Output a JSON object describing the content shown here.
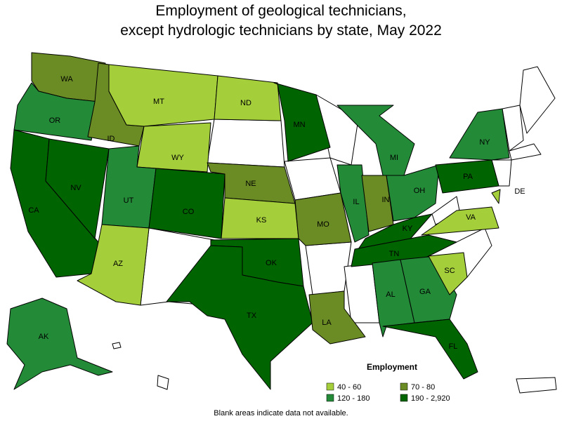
{
  "title": [
    "Employment of geological technicians,",
    "except hydrologic technicians by state, May 2022"
  ],
  "legend": {
    "title": "Employment",
    "classes": [
      {
        "label": "40 - 60",
        "color": "#a4cf3a"
      },
      {
        "label": "70 - 80",
        "color": "#6b8c24"
      },
      {
        "label": "120 - 180",
        "color": "#238b38"
      },
      {
        "label": "190 - 2,920",
        "color": "#006400"
      }
    ]
  },
  "states": [
    {
      "abbr": "WA",
      "class": 1
    },
    {
      "abbr": "OR",
      "class": 2
    },
    {
      "abbr": "CA",
      "class": 3
    },
    {
      "abbr": "NV",
      "class": 3
    },
    {
      "abbr": "ID",
      "class": 1
    },
    {
      "abbr": "MT",
      "class": 0
    },
    {
      "abbr": "WY",
      "class": 0
    },
    {
      "abbr": "UT",
      "class": 2
    },
    {
      "abbr": "CO",
      "class": 3
    },
    {
      "abbr": "AZ",
      "class": 0
    },
    {
      "abbr": "ND",
      "class": 0
    },
    {
      "abbr": "NE",
      "class": 1
    },
    {
      "abbr": "KS",
      "class": 0
    },
    {
      "abbr": "OK",
      "class": 3
    },
    {
      "abbr": "TX",
      "class": 3
    },
    {
      "abbr": "MN",
      "class": 3
    },
    {
      "abbr": "MO",
      "class": 1
    },
    {
      "abbr": "LA",
      "class": 1
    },
    {
      "abbr": "IL",
      "class": 2
    },
    {
      "abbr": "MI",
      "class": 2
    },
    {
      "abbr": "IN",
      "class": 1
    },
    {
      "abbr": "OH",
      "class": 2
    },
    {
      "abbr": "KY",
      "class": 3
    },
    {
      "abbr": "TN",
      "class": 3
    },
    {
      "abbr": "AL",
      "class": 2
    },
    {
      "abbr": "GA",
      "class": 2
    },
    {
      "abbr": "FL",
      "class": 3
    },
    {
      "abbr": "SC",
      "class": 0
    },
    {
      "abbr": "VA",
      "class": 0
    },
    {
      "abbr": "PA",
      "class": 3
    },
    {
      "abbr": "NY",
      "class": 2
    },
    {
      "abbr": "DE",
      "class": 0
    },
    {
      "abbr": "AK",
      "class": 2
    }
  ],
  "note": "Blank areas indicate data not available."
}
